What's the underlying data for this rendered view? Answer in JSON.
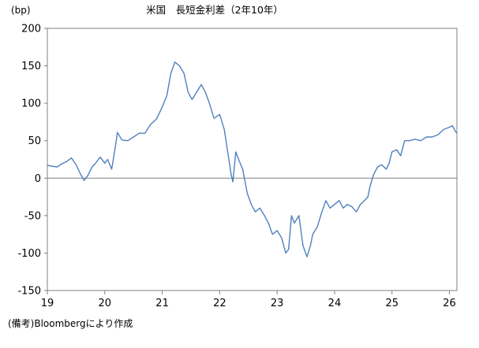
{
  "chart_data": {
    "type": "line",
    "title": "米国　長短金利差（2年10年）",
    "ylabel": "(bp)",
    "xlabel": "",
    "source": "(備考)Bloombergにより作成",
    "ylim": [
      -150,
      200
    ],
    "yticks": [
      200,
      150,
      100,
      50,
      0,
      -50,
      -100,
      -150
    ],
    "xlim": [
      2019.0,
      2026.13
    ],
    "xticks": [
      {
        "label": "19",
        "value": 2019
      },
      {
        "label": "20",
        "value": 2020
      },
      {
        "label": "21",
        "value": 2021
      },
      {
        "label": "22",
        "value": 2022
      },
      {
        "label": "23",
        "value": 2023
      },
      {
        "label": "24",
        "value": 2024
      },
      {
        "label": "25",
        "value": 2025
      },
      {
        "label": "26",
        "value": 2026
      }
    ],
    "grid": false,
    "zero_line": true,
    "series": [
      {
        "color": "#4f81bd",
        "points": [
          [
            2019.0,
            17
          ],
          [
            2019.08,
            16
          ],
          [
            2019.17,
            15
          ],
          [
            2019.25,
            19
          ],
          [
            2019.33,
            22
          ],
          [
            2019.42,
            27
          ],
          [
            2019.5,
            18
          ],
          [
            2019.58,
            5
          ],
          [
            2019.64,
            -3
          ],
          [
            2019.7,
            3
          ],
          [
            2019.78,
            15
          ],
          [
            2019.85,
            21
          ],
          [
            2019.92,
            28
          ],
          [
            2020.0,
            20
          ],
          [
            2020.05,
            25
          ],
          [
            2020.12,
            12
          ],
          [
            2020.18,
            40
          ],
          [
            2020.22,
            61
          ],
          [
            2020.3,
            51
          ],
          [
            2020.4,
            50
          ],
          [
            2020.5,
            55
          ],
          [
            2020.6,
            60
          ],
          [
            2020.7,
            60
          ],
          [
            2020.8,
            72
          ],
          [
            2020.9,
            79
          ],
          [
            2021.0,
            95
          ],
          [
            2021.08,
            110
          ],
          [
            2021.15,
            140
          ],
          [
            2021.22,
            155
          ],
          [
            2021.3,
            150
          ],
          [
            2021.38,
            140
          ],
          [
            2021.45,
            115
          ],
          [
            2021.52,
            105
          ],
          [
            2021.6,
            115
          ],
          [
            2021.68,
            125
          ],
          [
            2021.75,
            115
          ],
          [
            2021.82,
            100
          ],
          [
            2021.9,
            80
          ],
          [
            2022.0,
            85
          ],
          [
            2022.08,
            65
          ],
          [
            2022.15,
            30
          ],
          [
            2022.2,
            5
          ],
          [
            2022.23,
            -5
          ],
          [
            2022.28,
            35
          ],
          [
            2022.33,
            25
          ],
          [
            2022.4,
            12
          ],
          [
            2022.48,
            -20
          ],
          [
            2022.55,
            -35
          ],
          [
            2022.62,
            -45
          ],
          [
            2022.7,
            -40
          ],
          [
            2022.78,
            -50
          ],
          [
            2022.85,
            -60
          ],
          [
            2022.92,
            -75
          ],
          [
            2023.0,
            -70
          ],
          [
            2023.08,
            -80
          ],
          [
            2023.15,
            -100
          ],
          [
            2023.2,
            -95
          ],
          [
            2023.25,
            -50
          ],
          [
            2023.3,
            -60
          ],
          [
            2023.38,
            -50
          ],
          [
            2023.45,
            -90
          ],
          [
            2023.52,
            -105
          ],
          [
            2023.58,
            -90
          ],
          [
            2023.62,
            -75
          ],
          [
            2023.7,
            -65
          ],
          [
            2023.78,
            -45
          ],
          [
            2023.85,
            -30
          ],
          [
            2023.92,
            -40
          ],
          [
            2024.0,
            -35
          ],
          [
            2024.08,
            -30
          ],
          [
            2024.15,
            -40
          ],
          [
            2024.22,
            -35
          ],
          [
            2024.3,
            -38
          ],
          [
            2024.38,
            -45
          ],
          [
            2024.45,
            -35
          ],
          [
            2024.52,
            -30
          ],
          [
            2024.58,
            -25
          ],
          [
            2024.62,
            -10
          ],
          [
            2024.68,
            5
          ],
          [
            2024.75,
            15
          ],
          [
            2024.82,
            18
          ],
          [
            2024.9,
            12
          ],
          [
            2024.95,
            20
          ],
          [
            2025.0,
            35
          ],
          [
            2025.08,
            38
          ],
          [
            2025.15,
            30
          ],
          [
            2025.22,
            50
          ],
          [
            2025.3,
            50
          ],
          [
            2025.4,
            52
          ],
          [
            2025.5,
            50
          ],
          [
            2025.6,
            55
          ],
          [
            2025.7,
            55
          ],
          [
            2025.8,
            58
          ],
          [
            2025.9,
            65
          ],
          [
            2026.0,
            68
          ],
          [
            2026.05,
            70
          ],
          [
            2026.1,
            63
          ],
          [
            2026.13,
            60
          ]
        ]
      }
    ]
  }
}
